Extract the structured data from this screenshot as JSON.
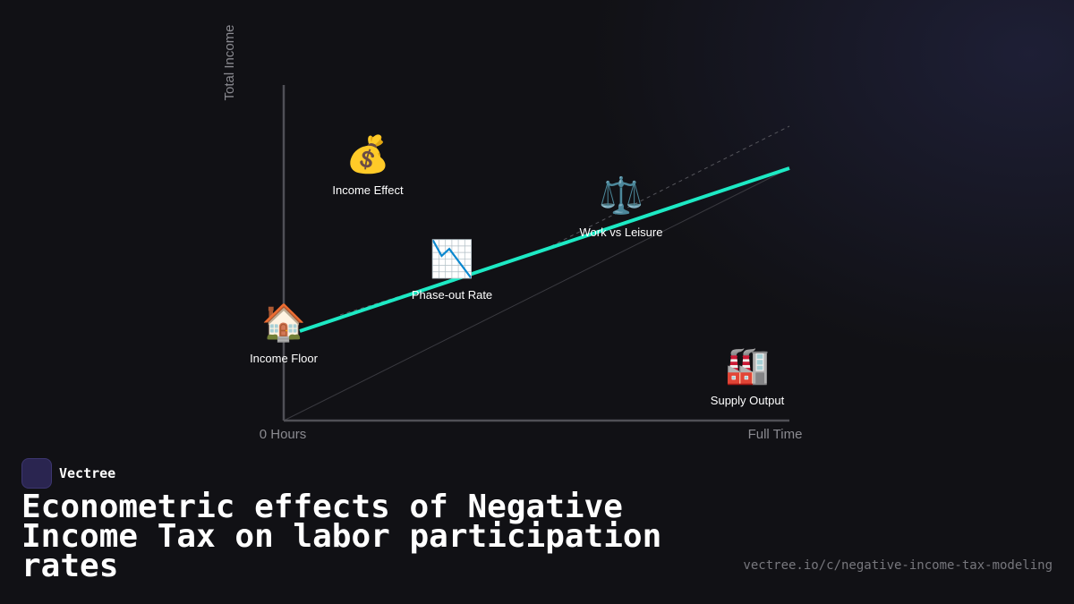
{
  "axes": {
    "y_label": "Total Income",
    "x_start": "0 Hours",
    "x_end": "Full Time"
  },
  "nodes": [
    {
      "icon": "🏠",
      "label": "Income Floor"
    },
    {
      "icon": "💰",
      "label": "Income Effect"
    },
    {
      "icon": "📉",
      "label": "Phase-out Rate"
    },
    {
      "icon": "⚖️",
      "label": "Work vs Leisure"
    },
    {
      "icon": "🏭",
      "label": "Supply Output"
    }
  ],
  "brand": "Vectree",
  "title": "Econometric effects of Negative Income Tax on labor participation rates",
  "url": "vectree.io/c/negative-income-tax-modeling"
}
